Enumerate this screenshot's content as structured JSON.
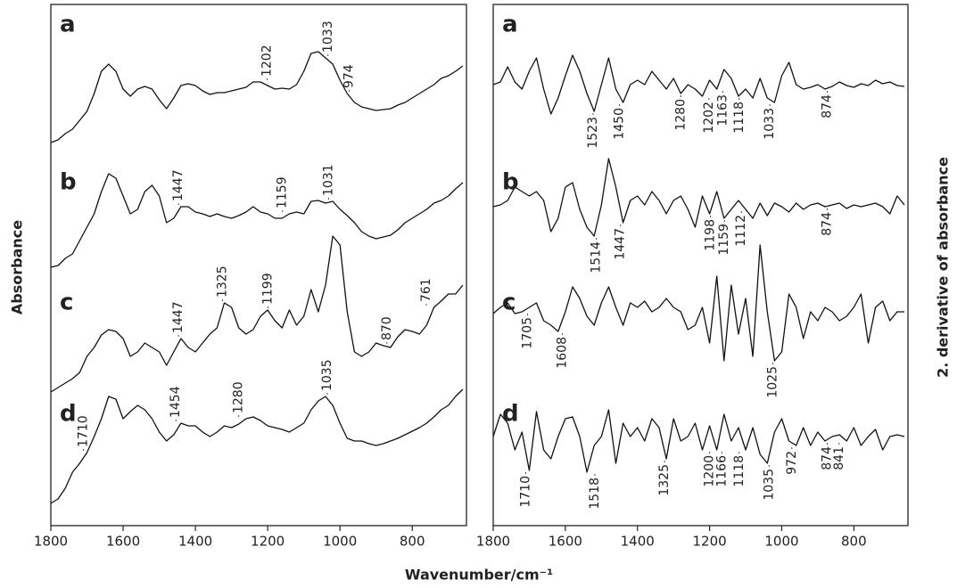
{
  "xlabel": "Wavenumber/cm⁻¹",
  "chart_data": [
    {
      "type": "line",
      "ylabel": "Absorbance",
      "xlim": [
        1800,
        650
      ],
      "ylim": [
        0,
        585
      ],
      "xticks": [
        1800,
        1600,
        1400,
        1200,
        1000,
        800
      ],
      "grid": false,
      "color": "#111111",
      "label_side": "above",
      "x": [
        1800,
        1780,
        1760,
        1740,
        1720,
        1700,
        1680,
        1660,
        1640,
        1620,
        1600,
        1580,
        1560,
        1540,
        1520,
        1500,
        1480,
        1460,
        1440,
        1420,
        1400,
        1380,
        1360,
        1340,
        1320,
        1300,
        1280,
        1260,
        1240,
        1220,
        1200,
        1180,
        1160,
        1140,
        1120,
        1100,
        1080,
        1060,
        1040,
        1020,
        1000,
        980,
        960,
        940,
        920,
        900,
        880,
        860,
        840,
        820,
        800,
        780,
        760,
        740,
        720,
        700,
        680,
        660
      ],
      "series": [
        {
          "name": "a",
          "peaks": [
            1202,
            1033,
            974
          ],
          "values": [
            430,
            433,
            440,
            445,
            455,
            465,
            485,
            510,
            518,
            510,
            490,
            482,
            490,
            493,
            490,
            478,
            468,
            480,
            494,
            496,
            494,
            488,
            484,
            486,
            486,
            488,
            490,
            492,
            498,
            498,
            494,
            490,
            491,
            490,
            495,
            510,
            530,
            532,
            525,
            518,
            500,
            485,
            475,
            470,
            468,
            466,
            467,
            468,
            472,
            475,
            480,
            485,
            490,
            495,
            502,
            505,
            510,
            516
          ]
        },
        {
          "name": "b",
          "peaks": [
            1447,
            1159,
            1031
          ],
          "values": [
            290,
            292,
            300,
            305,
            320,
            335,
            350,
            375,
            395,
            390,
            370,
            350,
            355,
            375,
            382,
            370,
            340,
            345,
            358,
            358,
            352,
            350,
            347,
            350,
            347,
            345,
            348,
            352,
            358,
            352,
            350,
            345,
            345,
            350,
            352,
            350,
            364,
            365,
            362,
            364,
            355,
            348,
            340,
            330,
            325,
            322,
            324,
            326,
            332,
            340,
            345,
            350,
            355,
            362,
            365,
            370,
            378,
            385
          ]
        },
        {
          "name": "c",
          "peaks": [
            1447,
            1325,
            1199,
            870,
            761
          ],
          "values": [
            150,
            155,
            160,
            165,
            172,
            190,
            200,
            214,
            220,
            218,
            210,
            190,
            195,
            205,
            200,
            195,
            180,
            195,
            210,
            200,
            195,
            205,
            215,
            222,
            250,
            245,
            222,
            215,
            220,
            235,
            242,
            230,
            222,
            242,
            225,
            235,
            265,
            240,
            270,
            325,
            315,
            240,
            195,
            190,
            195,
            205,
            202,
            200,
            212,
            220,
            218,
            215,
            225,
            245,
            252,
            260,
            260,
            270
          ]
        },
        {
          "name": "d",
          "peaks": [
            1710,
            1454,
            1280,
            1035
          ],
          "values": [
            25,
            30,
            42,
            60,
            70,
            82,
            100,
            120,
            145,
            142,
            120,
            128,
            135,
            130,
            120,
            105,
            95,
            102,
            115,
            112,
            112,
            105,
            100,
            105,
            112,
            110,
            114,
            120,
            122,
            118,
            112,
            110,
            108,
            105,
            110,
            115,
            130,
            140,
            145,
            135,
            115,
            98,
            95,
            95,
            92,
            90,
            92,
            95,
            98,
            102,
            106,
            110,
            115,
            122,
            130,
            135,
            145,
            153
          ]
        }
      ]
    },
    {
      "type": "line",
      "ylabel": "2. derivative of absorbance",
      "xlim": [
        1800,
        650
      ],
      "ylim": [
        0,
        585
      ],
      "xticks": [
        1800,
        1600,
        1400,
        1200,
        1000,
        800
      ],
      "grid": false,
      "color": "#111111",
      "label_side": "below",
      "x": [
        1800,
        1780,
        1760,
        1740,
        1720,
        1700,
        1680,
        1660,
        1640,
        1620,
        1600,
        1580,
        1560,
        1540,
        1520,
        1500,
        1480,
        1460,
        1440,
        1420,
        1400,
        1380,
        1360,
        1340,
        1320,
        1300,
        1280,
        1260,
        1240,
        1220,
        1200,
        1180,
        1160,
        1140,
        1120,
        1100,
        1080,
        1060,
        1040,
        1020,
        1000,
        980,
        960,
        940,
        920,
        900,
        880,
        860,
        840,
        820,
        800,
        780,
        760,
        740,
        720,
        700,
        680,
        660
      ],
      "series": [
        {
          "name": "a",
          "peaks": [
            1523,
            1450,
            1280,
            1202,
            1163,
            1118,
            1033,
            874
          ],
          "values": [
            495,
            498,
            515,
            498,
            490,
            510,
            525,
            490,
            462,
            480,
            505,
            528,
            510,
            485,
            465,
            495,
            525,
            490,
            475,
            495,
            500,
            495,
            510,
            500,
            490,
            502,
            485,
            495,
            490,
            482,
            500,
            490,
            512,
            502,
            482,
            490,
            480,
            502,
            480,
            475,
            505,
            520,
            495,
            490,
            492,
            495,
            490,
            493,
            498,
            494,
            492,
            496,
            494,
            500,
            496,
            498,
            494,
            493
          ]
        },
        {
          "name": "b",
          "peaks": [
            1514,
            1447,
            1198,
            1159,
            1112,
            874
          ],
          "values": [
            358,
            360,
            365,
            380,
            375,
            370,
            375,
            365,
            330,
            345,
            380,
            385,
            355,
            335,
            325,
            360,
            412,
            380,
            340,
            365,
            370,
            360,
            375,
            365,
            350,
            365,
            370,
            355,
            335,
            370,
            350,
            375,
            345,
            355,
            365,
            355,
            345,
            362,
            348,
            362,
            358,
            352,
            362,
            355,
            360,
            362,
            358,
            360,
            362,
            356,
            360,
            358,
            360,
            362,
            358,
            350,
            370,
            360
          ]
        },
        {
          "name": "c",
          "peaks": [
            1705,
            1608,
            1025
          ],
          "values": [
            238,
            245,
            250,
            238,
            240,
            245,
            250,
            230,
            225,
            218,
            240,
            268,
            255,
            235,
            225,
            250,
            268,
            245,
            225,
            250,
            245,
            252,
            240,
            245,
            255,
            245,
            240,
            220,
            225,
            245,
            205,
            280,
            185,
            270,
            215,
            255,
            190,
            315,
            240,
            185,
            195,
            260,
            245,
            210,
            240,
            230,
            245,
            240,
            230,
            235,
            245,
            260,
            205,
            245,
            252,
            230,
            240,
            240
          ]
        },
        {
          "name": "d",
          "peaks": [
            1710,
            1518,
            1325,
            1200,
            1166,
            1118,
            1035,
            972,
            874,
            841
          ],
          "values": [
            100,
            125,
            115,
            85,
            105,
            62,
            128,
            85,
            75,
            100,
            120,
            122,
            100,
            60,
            90,
            100,
            130,
            70,
            115,
            100,
            110,
            95,
            120,
            110,
            75,
            120,
            95,
            100,
            115,
            85,
            112,
            85,
            125,
            95,
            110,
            85,
            110,
            80,
            70,
            105,
            120,
            95,
            90,
            110,
            90,
            105,
            95,
            100,
            102,
            95,
            110,
            90,
            100,
            108,
            85,
            100,
            102,
            100
          ]
        }
      ]
    }
  ]
}
